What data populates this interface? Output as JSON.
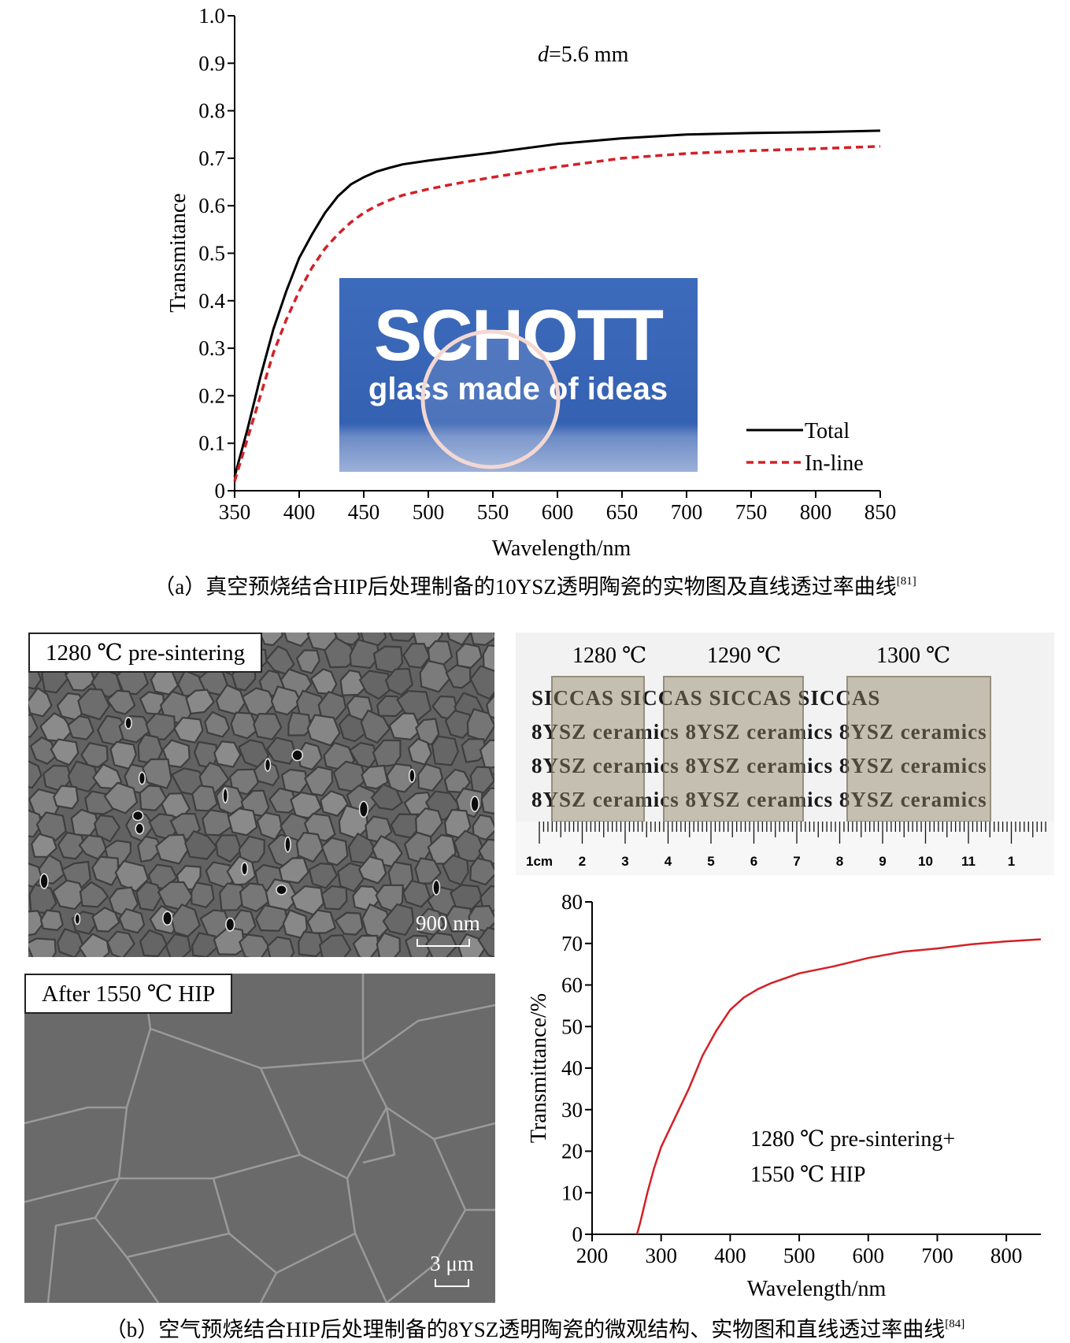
{
  "figure_a": {
    "chart_data": {
      "type": "line",
      "title": "",
      "annotation": "d=5.6 mm",
      "annotation_italic": "d",
      "annotation_rest": "=5.6 mm",
      "xlabel": "Wavelength/nm",
      "ylabel": "Transmitance",
      "xlim": [
        350,
        850
      ],
      "ylim": [
        0,
        1.0
      ],
      "xticks": [
        350,
        400,
        450,
        500,
        550,
        600,
        650,
        700,
        750,
        800,
        850
      ],
      "yticks": [
        "0",
        "0.1",
        "0.2",
        "0.3",
        "0.4",
        "0.5",
        "0.6",
        "0.7",
        "0.8",
        "0.9",
        "1.0"
      ],
      "legend_position": "bottom-right",
      "series": [
        {
          "name": "Total",
          "color": "#000000",
          "style": "solid",
          "x": [
            350,
            360,
            370,
            380,
            390,
            400,
            410,
            420,
            430,
            440,
            450,
            460,
            470,
            480,
            500,
            520,
            550,
            600,
            650,
            700,
            750,
            800,
            850
          ],
          "y": [
            0.03,
            0.13,
            0.24,
            0.34,
            0.42,
            0.49,
            0.54,
            0.585,
            0.62,
            0.645,
            0.66,
            0.672,
            0.68,
            0.687,
            0.695,
            0.702,
            0.712,
            0.73,
            0.742,
            0.75,
            0.753,
            0.755,
            0.758
          ]
        },
        {
          "name": "In-line",
          "color": "#d42027",
          "style": "dashed",
          "x": [
            350,
            360,
            370,
            380,
            390,
            400,
            410,
            420,
            430,
            440,
            450,
            460,
            470,
            480,
            500,
            520,
            550,
            600,
            650,
            700,
            750,
            800,
            850
          ],
          "y": [
            0.02,
            0.11,
            0.2,
            0.29,
            0.36,
            0.42,
            0.47,
            0.51,
            0.54,
            0.565,
            0.585,
            0.6,
            0.612,
            0.622,
            0.635,
            0.646,
            0.66,
            0.682,
            0.7,
            0.71,
            0.716,
            0.72,
            0.725
          ]
        }
      ]
    },
    "inset_photo": {
      "brand": "SCHOTT",
      "tagline": "glass made of ideas",
      "background_color": "#3866b8"
    },
    "caption": "（a）真空预烧结合HIP后处理制备的10YSZ透明陶瓷的实物图及直线透过率曲线",
    "caption_ref": "[81]"
  },
  "figure_b": {
    "sem_top": {
      "label": "1280 ℃ pre-sintering",
      "scale_bar": "900 nm"
    },
    "sem_bottom": {
      "label": "After 1550 ℃ HIP",
      "scale_bar": "3 μm"
    },
    "photo": {
      "temperatures": [
        "1280 ℃",
        "1290 ℃",
        "1300 ℃"
      ],
      "background_lines": [
        "SICCAS SICCAS SICCAS SICCAS",
        "8YSZ ceramics 8YSZ ceramics 8YSZ ceramics",
        "8YSZ ceramics 8YSZ ceramics 8YSZ ceramics",
        "8YSZ ceramics 8YSZ ceramics 8YSZ ceramics"
      ],
      "ruler_labels": [
        "1cm",
        "2",
        "3",
        "4",
        "5",
        "6",
        "7",
        "8",
        "9",
        "10",
        "11",
        "1"
      ]
    },
    "chart_data": {
      "type": "line",
      "title": "",
      "xlabel": "Wavelength/nm",
      "ylabel": "Transmittance/%",
      "xlim": [
        200,
        850
      ],
      "ylim": [
        0,
        80
      ],
      "xticks": [
        200,
        300,
        400,
        500,
        600,
        700,
        800
      ],
      "yticks": [
        0,
        10,
        20,
        30,
        40,
        50,
        60,
        70,
        80
      ],
      "annotation_lines": [
        "1280 ℃ pre-sintering+",
        "1550 ℃ HIP"
      ],
      "series": [
        {
          "color": "#d42027",
          "x": [
            265,
            270,
            280,
            290,
            300,
            320,
            340,
            360,
            380,
            400,
            420,
            440,
            460,
            500,
            550,
            600,
            650,
            700,
            750,
            800,
            850
          ],
          "y": [
            0,
            3,
            10,
            16,
            21,
            28,
            35,
            43,
            49,
            54,
            57,
            59,
            60.5,
            62.8,
            64.5,
            66.5,
            68,
            68.8,
            69.8,
            70.5,
            71
          ]
        }
      ]
    },
    "caption": "（b）空气预烧结合HIP后处理制备的8YSZ透明陶瓷的微观结构、实物图和直线透过率曲线",
    "caption_ref": "[84]"
  }
}
